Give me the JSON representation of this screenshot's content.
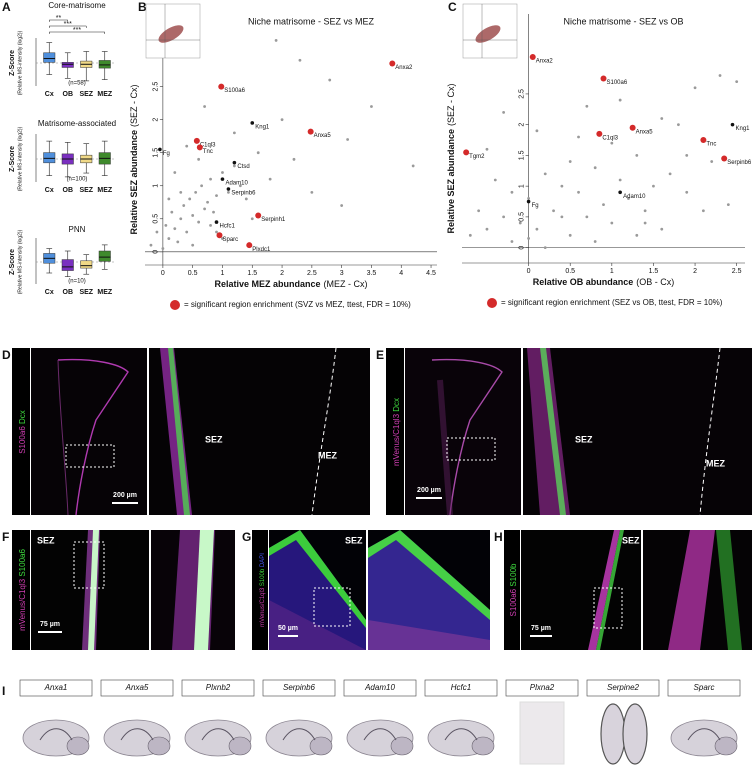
{
  "panel_letters": [
    "A",
    "B",
    "C",
    "D",
    "E",
    "F",
    "G",
    "H",
    "I"
  ],
  "chart_data": [
    {
      "type": "box",
      "title": "Core-matrisome",
      "ylabel": "Z-Score",
      "ylabel_note": "(Relative MS-intensity (log2))",
      "n_label": "(n=58)",
      "categories": [
        "Cx",
        "OB",
        "SEZ",
        "MEZ"
      ],
      "colors": [
        "#4f8fdc",
        "#7a2fc0",
        "#f0d987",
        "#3f8a2c"
      ],
      "ylim": [
        -1.8,
        1.8
      ],
      "significance": [
        "**",
        "***",
        "***"
      ],
      "boxes": [
        {
          "whislo": -0.9,
          "q1": 0.05,
          "med": 0.35,
          "q3": 0.8,
          "whishi": 1.6
        },
        {
          "whislo": -1.2,
          "q1": -0.35,
          "med": -0.1,
          "q3": 0.05,
          "whishi": 0.8
        },
        {
          "whislo": -1.4,
          "q1": -0.35,
          "med": -0.1,
          "q3": 0.15,
          "whishi": 0.9
        },
        {
          "whislo": -1.3,
          "q1": -0.4,
          "med": -0.15,
          "q3": 0.2,
          "whishi": 0.9
        }
      ]
    },
    {
      "type": "box",
      "title": "Matrisome-associated",
      "ylabel": "Z-Score",
      "ylabel_note": "(Relative MS-intensity (log2))",
      "n_label": "(n=100)",
      "categories": [
        "Cx",
        "OB",
        "SEZ",
        "MEZ"
      ],
      "colors": [
        "#4f8fdc",
        "#7a2fc0",
        "#f0d987",
        "#3f8a2c"
      ],
      "ylim": [
        -1.8,
        1.8
      ],
      "boxes": [
        {
          "whislo": -1.3,
          "q1": -0.3,
          "med": 0.05,
          "q3": 0.5,
          "whishi": 1.4
        },
        {
          "whislo": -1.4,
          "q1": -0.4,
          "med": 0.0,
          "q3": 0.4,
          "whishi": 1.3
        },
        {
          "whislo": -1.1,
          "q1": -0.3,
          "med": 0.0,
          "q3": 0.3,
          "whishi": 1.2
        },
        {
          "whislo": -1.3,
          "q1": -0.4,
          "med": 0.05,
          "q3": 0.5,
          "whishi": 1.4
        }
      ]
    },
    {
      "type": "box",
      "title": "PNN",
      "ylabel": "Z-Score",
      "ylabel_note": "(Relative MS-intensity (log2))",
      "n_label": "(n=10)",
      "categories": [
        "Cx",
        "OB",
        "SEZ",
        "MEZ"
      ],
      "colors": [
        "#4f8fdc",
        "#7a2fc0",
        "#f0d987",
        "#3f8a2c"
      ],
      "ylim": [
        -1.8,
        1.8
      ],
      "boxes": [
        {
          "whislo": -0.9,
          "q1": -0.1,
          "med": 0.3,
          "q3": 0.7,
          "whishi": 1.1
        },
        {
          "whislo": -1.2,
          "q1": -0.7,
          "med": -0.4,
          "q3": 0.2,
          "whishi": 0.9
        },
        {
          "whislo": -1.0,
          "q1": -0.5,
          "med": -0.3,
          "q3": 0.1,
          "whishi": 0.6
        },
        {
          "whislo": -0.6,
          "q1": 0.05,
          "med": 0.4,
          "q3": 0.9,
          "whishi": 1.4
        }
      ]
    },
    {
      "type": "scatter",
      "title": "Niche matrisome - SEZ vs MEZ",
      "xlabel": "Relative MEZ abundance",
      "xlabel_note": "(MEZ - Cx)",
      "ylabel": "Relative SEZ abundance",
      "ylabel_note": "(SEZ - Cx)",
      "xlim": [
        -0.3,
        4.6
      ],
      "ylim": [
        -0.2,
        3.6
      ],
      "xticks": [
        0,
        0.5,
        1,
        1.5,
        2,
        2.5,
        3,
        3.5,
        4,
        4.5
      ],
      "yticks": [
        0,
        0.5,
        1,
        1.5,
        2,
        2.5
      ],
      "series": [
        {
          "color": "#9a9a9a",
          "x": [
            -0.2,
            -0.1,
            0,
            0.05,
            0.1,
            0.15,
            0.2,
            0.25,
            0.3,
            0.35,
            0.4,
            0.45,
            0.5,
            0.55,
            0.6,
            0.65,
            0.7,
            0.75,
            0.8,
            0.85,
            0.9,
            1.0,
            1.1,
            1.2,
            1.3,
            1.4,
            1.6,
            1.8,
            2.0,
            2.2,
            2.5,
            2.8,
            3.1,
            3.5,
            4.2,
            0.3,
            0.6,
            0.9,
            1.2,
            0.2,
            0.5,
            0.8,
            1.5,
            2.3,
            3.0,
            0.4,
            0.7,
            1.0,
            0.1,
            1.9
          ],
          "values": [
            0.1,
            0.3,
            0.05,
            0.4,
            0.2,
            0.6,
            0.35,
            0.15,
            0.5,
            0.7,
            0.3,
            0.8,
            0.55,
            0.9,
            0.45,
            1.0,
            0.65,
            0.75,
            1.1,
            0.6,
            0.85,
            1.2,
            0.9,
            1.3,
            1.0,
            0.8,
            1.5,
            1.1,
            2.0,
            1.4,
            0.9,
            2.6,
            1.7,
            2.2,
            1.3,
            0.9,
            1.4,
            0.3,
            1.8,
            1.2,
            0.1,
            0.4,
            0.5,
            2.9,
            0.7,
            1.6,
            2.2,
            0.2,
            0.8,
            3.2
          ]
        },
        {
          "color": "#111111",
          "labels": [
            "Kng1",
            "Fg",
            "Ctsd",
            "Adam10",
            "Serpinb6",
            "Hcfc1"
          ],
          "x": [
            1.5,
            -0.05,
            1.2,
            1.0,
            1.1,
            0.9
          ],
          "values": [
            1.95,
            1.55,
            1.35,
            1.1,
            0.95,
            0.45
          ]
        },
        {
          "name": "= significant region enrichment (SVZ vs MEZ, ttest, FDR = 10%)",
          "color": "#d42a2a",
          "labels": [
            "Anxa2",
            "S100a6",
            "Anxa5",
            "C1ql3",
            "Tnc",
            "Serpinh1",
            "Plxdc1",
            "Sparc"
          ],
          "x": [
            3.85,
            0.98,
            2.48,
            0.57,
            0.62,
            1.6,
            1.45,
            0.95
          ],
          "values": [
            2.85,
            2.5,
            1.82,
            1.68,
            1.58,
            0.55,
            0.1,
            0.25
          ]
        }
      ]
    },
    {
      "type": "scatter",
      "title": "Niche matrisome - SEZ vs OB",
      "xlabel": "Relative OB abundance",
      "xlabel_note": "(OB - Cx)",
      "ylabel": "Relative SEZ abundance",
      "ylabel_note": "(SEZ - Cx)",
      "xlim": [
        -0.8,
        2.6
      ],
      "ylim": [
        -0.25,
        3.8
      ],
      "xticks": [
        0,
        0.5,
        1,
        1.5,
        2,
        2.5
      ],
      "yticks": [
        0,
        0.5,
        1,
        1.5,
        2,
        2.5
      ],
      "series": [
        {
          "color": "#9a9a9a",
          "x": [
            -0.7,
            -0.6,
            -0.5,
            -0.4,
            -0.3,
            -0.2,
            -0.1,
            0,
            0.1,
            0.2,
            0.3,
            0.4,
            0.5,
            0.6,
            0.7,
            0.8,
            0.9,
            1.0,
            1.1,
            1.2,
            1.3,
            1.4,
            1.5,
            1.6,
            1.7,
            1.8,
            1.9,
            2.0,
            2.2,
            2.4,
            -0.5,
            -0.2,
            0.1,
            0.4,
            0.7,
            1.0,
            1.3,
            1.6,
            1.9,
            2.3,
            0.2,
            0.5,
            0.8,
            1.1,
            1.4,
            -0.3,
            0.0,
            0.6,
            2.1,
            2.5
          ],
          "values": [
            0.2,
            0.6,
            0.3,
            1.1,
            0.5,
            0.9,
            0.4,
            0.8,
            0.3,
            1.2,
            0.6,
            1.0,
            0.2,
            0.9,
            0.5,
            1.3,
            0.7,
            0.4,
            1.1,
            0.8,
            1.5,
            0.6,
            1.0,
            0.3,
            1.2,
            2.0,
            0.9,
            2.6,
            1.4,
            0.7,
            1.6,
            0.1,
            1.9,
            0.5,
            2.3,
            1.7,
            0.2,
            2.1,
            1.5,
            2.8,
            0.0,
            1.4,
            0.1,
            2.4,
            0.4,
            2.2,
            0.15,
            1.8,
            0.6,
            2.7
          ]
        },
        {
          "color": "#111111",
          "labels": [
            "Kng1",
            "Adam10",
            "Fg"
          ],
          "x": [
            2.45,
            1.1,
            0.0
          ],
          "values": [
            2.0,
            0.9,
            0.75
          ]
        },
        {
          "name": "= significant region enrichment (SEZ vs OB, ttest, FDR = 10%)",
          "color": "#d42a2a",
          "labels": [
            "Anxa2",
            "S100a6",
            "Anxa5",
            "C1ql3",
            "Tnc",
            "Tgm2",
            "Serpinb6"
          ],
          "x": [
            0.05,
            0.9,
            1.25,
            0.85,
            2.1,
            -0.75,
            2.35
          ],
          "values": [
            3.1,
            2.75,
            1.95,
            1.85,
            1.75,
            1.55,
            1.45
          ]
        }
      ]
    }
  ],
  "image_panels": [
    {
      "stains": [
        {
          "text": "S100a6",
          "color": "#d23fb4"
        },
        {
          "text": " Dcx",
          "color": "#3fdc3f"
        }
      ],
      "regions": [
        "SEZ",
        "MEZ"
      ],
      "scale_bar": "200 µm"
    },
    {
      "stains": [
        {
          "text": "mVenus/C1ql3",
          "color": "#d23fb4"
        },
        {
          "text": " Dcx",
          "color": "#3fdc3f"
        }
      ],
      "regions": [
        "SEZ",
        "MEZ"
      ],
      "scale_bar": "200 µm"
    },
    {
      "stains": [
        {
          "text": "mVenus/C1ql3",
          "color": "#d23fb4"
        },
        {
          "text": " S100a6",
          "color": "#3fdc3f"
        }
      ],
      "regions": [
        "SEZ"
      ],
      "scale_bar": "75 µm"
    },
    {
      "stains": [
        {
          "text": "mVenus/C1ql3",
          "color": "#d23fb4"
        },
        {
          "text": " S100b",
          "color": "#3fdc3f"
        },
        {
          "text": " DAPI",
          "color": "#4a5cff"
        }
      ],
      "regions": [
        "SEZ"
      ],
      "scale_bar": "50 µm"
    },
    {
      "stains": [
        {
          "text": "S100a6",
          "color": "#d23fb4"
        },
        {
          "text": " S100b",
          "color": "#3fdc3f"
        }
      ],
      "regions": [
        "SEZ"
      ],
      "scale_bar": "75 µm"
    }
  ],
  "in_situ_genes": [
    "Anxa1",
    "Anxa5",
    "Plxnb2",
    "Serpinb6",
    "Adam10",
    "Hcfc1",
    "Plxna2",
    "Serpine2",
    "Sparc"
  ]
}
